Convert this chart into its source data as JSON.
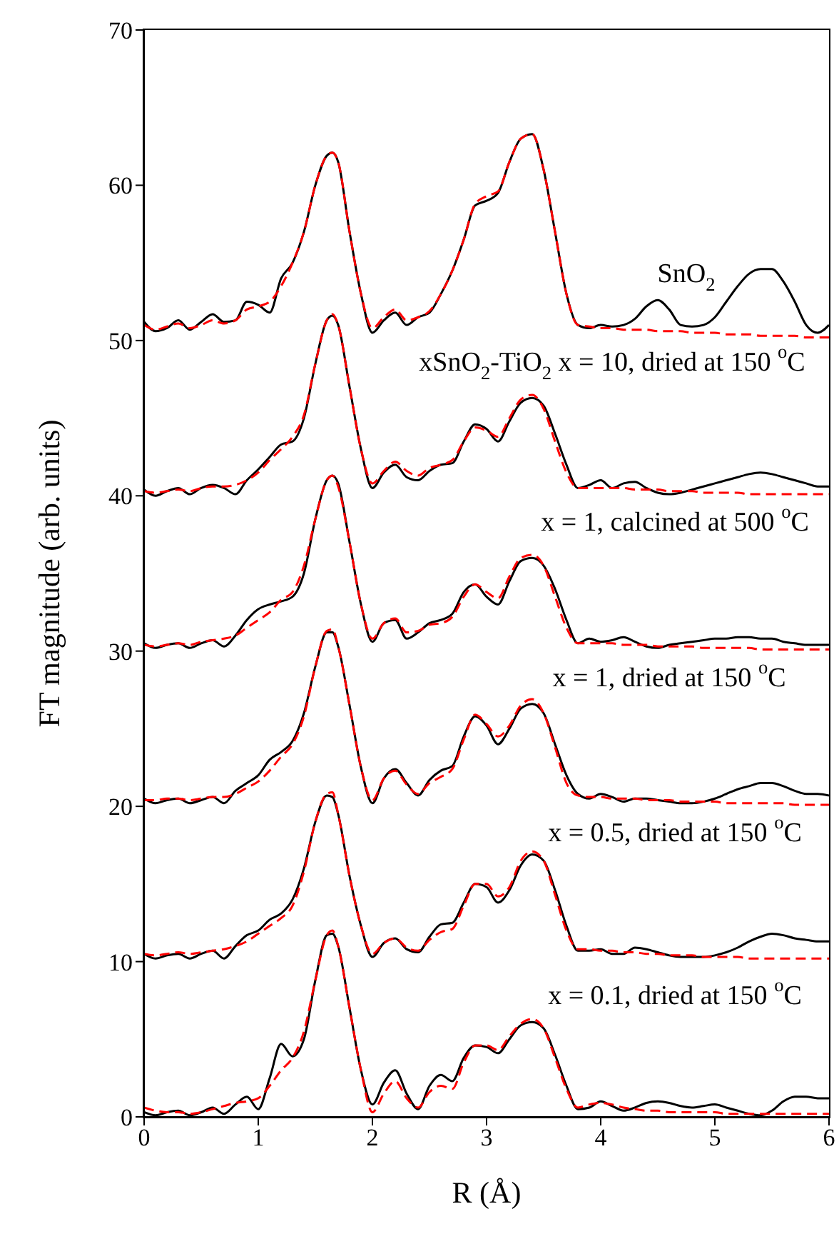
{
  "chart_data": {
    "type": "line",
    "xlabel": "R (Å)",
    "ylabel": "FT magnitude (arb. units)",
    "x": [
      0,
      0.1,
      0.2,
      0.3,
      0.4,
      0.5,
      0.6,
      0.7,
      0.8,
      0.9,
      1.0,
      1.1,
      1.2,
      1.3,
      1.4,
      1.5,
      1.6,
      1.65,
      1.7,
      1.8,
      1.9,
      2.0,
      2.1,
      2.2,
      2.3,
      2.4,
      2.5,
      2.6,
      2.7,
      2.8,
      2.9,
      3.0,
      3.1,
      3.2,
      3.3,
      3.4,
      3.5,
      3.6,
      3.7,
      3.8,
      3.9,
      4.0,
      4.1,
      4.2,
      4.3,
      4.4,
      4.5,
      4.6,
      4.7,
      4.8,
      4.9,
      5.0,
      5.1,
      5.2,
      5.3,
      5.4,
      5.5,
      5.6,
      5.7,
      5.8,
      5.9,
      6.0
    ],
    "series": [
      {
        "color": "#000000",
        "line_style": "solid",
        "values": [
          51.2,
          50.6,
          50.8,
          51.3,
          50.7,
          51.2,
          51.7,
          51.2,
          51.3,
          52.5,
          52.3,
          51.8,
          54,
          55,
          57,
          60,
          61.9,
          62.1,
          61.5,
          57,
          53,
          50.5,
          51.3,
          51.8,
          51,
          51.5,
          51.8,
          53,
          54.5,
          56.5,
          58.7,
          59,
          59.5,
          61.5,
          63,
          63.3,
          61,
          57,
          53,
          51,
          50.8,
          51,
          50.9,
          51,
          51.4,
          52.2,
          52.6,
          52,
          51,
          50.9,
          51,
          51.5,
          52.5,
          53.5,
          54.3,
          54.6,
          54.6,
          53.8,
          52.5,
          51,
          50.5,
          51
        ]
      },
      {
        "color": "#ff0000",
        "line_style": "dashed",
        "values": [
          51.0,
          50.7,
          50.9,
          51.1,
          50.8,
          51.0,
          51.3,
          51.1,
          51.3,
          52,
          52.2,
          52.5,
          53.5,
          55,
          57,
          60,
          61.9,
          62.1,
          61.5,
          57,
          53,
          50.8,
          51.5,
          52,
          51.3,
          51.5,
          51.9,
          53,
          54.5,
          56.5,
          58.8,
          59.3,
          59.6,
          61.5,
          63,
          63.3,
          61,
          57,
          53,
          51,
          50.9,
          50.8,
          50.8,
          50.7,
          50.7,
          50.7,
          50.6,
          50.6,
          50.6,
          50.5,
          50.5,
          50.5,
          50.4,
          50.4,
          50.4,
          50.3,
          50.3,
          50.3,
          50.3,
          50.2,
          50.2,
          50.2
        ]
      },
      {
        "color": "#000000",
        "line_style": "solid",
        "values": [
          40.4,
          40,
          40.3,
          40.5,
          40.1,
          40.5,
          40.7,
          40.5,
          40.1,
          41,
          41.7,
          42.5,
          43.3,
          43.5,
          45,
          48.5,
          51.3,
          51.6,
          51,
          47,
          43,
          40.5,
          41.5,
          42,
          41.2,
          41,
          41.6,
          42,
          42.1,
          43.5,
          44.6,
          44.3,
          43.5,
          44.8,
          46,
          46.3,
          45.8,
          44,
          42,
          40.5,
          40.7,
          41,
          40.5,
          40.8,
          40.9,
          40.5,
          40.2,
          40.1,
          40.2,
          40.4,
          40.6,
          40.8,
          41,
          41.2,
          41.4,
          41.5,
          41.4,
          41.2,
          41,
          40.8,
          40.6,
          40.6
        ]
      },
      {
        "color": "#ff0000",
        "line_style": "dashed",
        "values": [
          40.3,
          40.2,
          40.3,
          40.4,
          40.3,
          40.5,
          40.6,
          40.6,
          40.7,
          41,
          41.5,
          42.3,
          43,
          43.8,
          45.2,
          48.5,
          51.3,
          51.7,
          51,
          47,
          43,
          40.8,
          41.6,
          42.2,
          41.6,
          41.3,
          41.8,
          42,
          42.3,
          43.5,
          44.4,
          44.2,
          43.8,
          45,
          46.2,
          46.5,
          45.6,
          43.5,
          41.5,
          40.5,
          40.5,
          40.5,
          40.5,
          40.5,
          40.4,
          40.4,
          40.4,
          40.3,
          40.3,
          40.3,
          40.2,
          40.2,
          40.2,
          40.2,
          40.1,
          40.1,
          40.1,
          40.1,
          40.1,
          40.1,
          40.1,
          40.1
        ]
      },
      {
        "color": "#000000",
        "line_style": "solid",
        "values": [
          30.5,
          30.2,
          30.4,
          30.5,
          30.2,
          30.5,
          30.7,
          30.3,
          31,
          32,
          32.7,
          33,
          33.2,
          33.5,
          35,
          38.5,
          41,
          41.3,
          40.8,
          37,
          33,
          30.6,
          31.8,
          32,
          30.8,
          31.2,
          31.8,
          32,
          32.4,
          33.8,
          34.3,
          33.5,
          33,
          34.5,
          35.8,
          36,
          35.5,
          34,
          32,
          30.5,
          30.8,
          30.6,
          30.7,
          30.9,
          30.6,
          30.3,
          30.2,
          30.4,
          30.5,
          30.6,
          30.7,
          30.8,
          30.8,
          30.9,
          30.9,
          30.8,
          30.8,
          30.6,
          30.5,
          30.4,
          30.4,
          30.4
        ]
      },
      {
        "color": "#ff0000",
        "line_style": "dashed",
        "values": [
          30.4,
          30.3,
          30.4,
          30.5,
          30.4,
          30.6,
          30.7,
          30.8,
          31,
          31.5,
          32,
          32.5,
          33.3,
          33.8,
          35.5,
          38.5,
          41,
          41.3,
          40.6,
          37,
          33,
          30.8,
          31.8,
          32.1,
          31.2,
          31.3,
          31.7,
          31.8,
          32.2,
          33.5,
          34.3,
          33.8,
          33.4,
          34.8,
          36,
          36.2,
          35.5,
          33.5,
          31.5,
          30.5,
          30.5,
          30.5,
          30.5,
          30.4,
          30.4,
          30.4,
          30.3,
          30.3,
          30.3,
          30.3,
          30.2,
          30.2,
          30.2,
          30.2,
          30.2,
          30.1,
          30.1,
          30.1,
          30.1,
          30.1,
          30.1,
          30.1
        ]
      },
      {
        "color": "#000000",
        "line_style": "solid",
        "values": [
          20.5,
          20.2,
          20.4,
          20.5,
          20.2,
          20.4,
          20.6,
          20.2,
          21,
          21.5,
          22,
          23,
          23.5,
          24.2,
          26,
          29,
          31.2,
          31.2,
          30.3,
          26.5,
          22.5,
          20.2,
          21.8,
          22.4,
          21.5,
          20.7,
          21.7,
          22.3,
          22.6,
          24.5,
          25.8,
          25.2,
          24,
          25,
          26.3,
          26.6,
          26,
          24,
          22,
          20.8,
          20.5,
          20.8,
          20.6,
          20.3,
          20.5,
          20.5,
          20.4,
          20.3,
          20.2,
          20.2,
          20.3,
          20.5,
          20.8,
          21.1,
          21.3,
          21.5,
          21.5,
          21.3,
          21,
          20.8,
          20.8,
          20.7
        ]
      },
      {
        "color": "#ff0000",
        "line_style": "dashed",
        "values": [
          20.4,
          20.4,
          20.5,
          20.5,
          20.4,
          20.5,
          20.6,
          20.6,
          20.8,
          21.2,
          21.6,
          22.3,
          23.2,
          24,
          25.8,
          29,
          31.3,
          31.4,
          30.3,
          26.5,
          22.5,
          20.4,
          21.8,
          22.3,
          21.4,
          20.8,
          21.5,
          21.9,
          22.4,
          24.3,
          25.9,
          25.3,
          24.5,
          25.2,
          26.5,
          26.9,
          26,
          23.8,
          21.5,
          20.7,
          20.6,
          20.6,
          20.5,
          20.5,
          20.5,
          20.4,
          20.4,
          20.4,
          20.3,
          20.3,
          20.3,
          20.3,
          20.2,
          20.2,
          20.2,
          20.2,
          20.2,
          20.2,
          20.1,
          20.1,
          20.1,
          20.1
        ]
      },
      {
        "color": "#000000",
        "line_style": "solid",
        "values": [
          10.5,
          10.2,
          10.4,
          10.5,
          10.2,
          10.5,
          10.7,
          10.2,
          11,
          11.7,
          12,
          12.7,
          13.1,
          14,
          16,
          19,
          20.7,
          20.6,
          19.5,
          15.5,
          12.3,
          10.3,
          11.2,
          11.5,
          10.8,
          10.6,
          11.6,
          12.4,
          12.5,
          13.8,
          15,
          14.8,
          13.8,
          14.6,
          16.2,
          16.9,
          16.5,
          14.6,
          12.3,
          10.7,
          10.7,
          10.8,
          10.5,
          10.5,
          10.9,
          10.8,
          10.6,
          10.4,
          10.3,
          10.3,
          10.3,
          10.4,
          10.6,
          10.9,
          11.3,
          11.6,
          11.8,
          11.7,
          11.5,
          11.4,
          11.3,
          11.3
        ]
      },
      {
        "color": "#ff0000",
        "line_style": "dashed",
        "values": [
          10.5,
          10.4,
          10.5,
          10.6,
          10.5,
          10.6,
          10.7,
          10.8,
          11,
          11.3,
          11.8,
          12.3,
          12.8,
          13.6,
          15.8,
          19,
          20.8,
          20.9,
          19.5,
          15.5,
          12.3,
          10.5,
          11.2,
          11.5,
          10.9,
          10.7,
          11.4,
          11.9,
          12.1,
          13.6,
          15,
          15,
          14.2,
          14.8,
          16.5,
          17.1,
          16.5,
          14.3,
          12,
          10.8,
          10.8,
          10.7,
          10.7,
          10.6,
          10.6,
          10.5,
          10.5,
          10.4,
          10.4,
          10.4,
          10.3,
          10.3,
          10.3,
          10.3,
          10.2,
          10.2,
          10.2,
          10.2,
          10.2,
          10.2,
          10.2,
          10.2
        ]
      },
      {
        "color": "#000000",
        "line_style": "solid",
        "values": [
          0.3,
          0.1,
          0.3,
          0.4,
          0.1,
          0.3,
          0.6,
          0.2,
          0.8,
          1.3,
          0.5,
          2.5,
          4.7,
          3.9,
          5,
          8.8,
          11.7,
          11.8,
          11,
          7,
          3,
          0.8,
          2.2,
          3,
          1.5,
          0.5,
          2,
          2.7,
          2.3,
          3.8,
          4.6,
          4.5,
          4.1,
          5,
          5.9,
          6.1,
          5.7,
          4,
          2,
          0.5,
          0.6,
          1,
          0.7,
          0.4,
          0.6,
          0.9,
          1,
          0.9,
          0.7,
          0.6,
          0.7,
          0.8,
          0.6,
          0.4,
          0.2,
          0.1,
          0.4,
          1,
          1.3,
          1.3,
          1.2,
          1.2
        ]
      },
      {
        "color": "#ff0000",
        "line_style": "dashed",
        "values": [
          0.6,
          0.4,
          0.3,
          0.3,
          0.2,
          0.3,
          0.5,
          0.7,
          0.9,
          1,
          1.2,
          2,
          3,
          3.8,
          5.5,
          8.8,
          11.7,
          12,
          11,
          7,
          3,
          0.3,
          1.5,
          2.3,
          1.2,
          0.6,
          1.6,
          2,
          1.8,
          3.5,
          4.6,
          4.6,
          4.3,
          5.2,
          6,
          6.3,
          5.7,
          3.8,
          1.8,
          0.6,
          0.8,
          0.9,
          0.8,
          0.6,
          0.5,
          0.4,
          0.4,
          0.3,
          0.3,
          0.3,
          0.3,
          0.3,
          0.2,
          0.2,
          0.2,
          0.2,
          0.2,
          0.2,
          0.2,
          0.2,
          0.2,
          0.2
        ]
      }
    ],
    "annotations": [
      "SnO$_{2}$",
      "xSnO$_{2}$-TiO$_{2}$  x = 10, dried at 150 $^{o}$C",
      "x = 1, calcined at 500 $^{o}$C",
      "x = 1, dried at 150 $^{o}$C",
      "x = 0.5, dried at 150 $^{o}$C",
      "x = 0.1, dried at 150 $^{o}$C"
    ],
    "xlim": [
      0,
      6
    ],
    "xticks": [
      0,
      1,
      2,
      3,
      4,
      5,
      6
    ],
    "ylim": [
      0,
      70
    ],
    "yticks": [
      0,
      10,
      20,
      30,
      40,
      50,
      60,
      70
    ],
    "grid": false,
    "marker": "none"
  }
}
